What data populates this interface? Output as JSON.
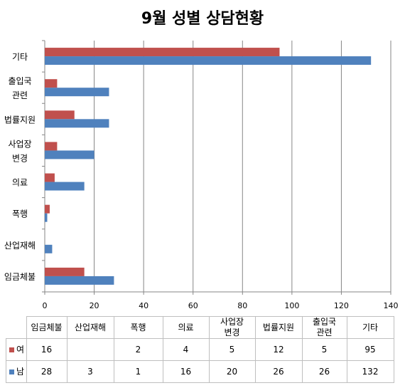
{
  "chart_data": {
    "type": "bar",
    "orientation": "horizontal",
    "title": "9월 성별 상담현황",
    "categories": [
      "임금체불",
      "산업재해",
      "폭행",
      "의료",
      "사업장\n변경",
      "법률지원",
      "출입국\n관련",
      "기타"
    ],
    "series": [
      {
        "name": "여",
        "color": "#C0504D",
        "values": [
          16,
          null,
          2,
          4,
          5,
          12,
          5,
          95
        ]
      },
      {
        "name": "남",
        "color": "#4F81BD",
        "values": [
          28,
          3,
          1,
          16,
          20,
          26,
          26,
          132
        ]
      }
    ],
    "xlim": [
      0,
      140
    ],
    "xticks": [
      0,
      20,
      40,
      60,
      80,
      100,
      120,
      140
    ],
    "grid": true,
    "legend": "data-table"
  }
}
